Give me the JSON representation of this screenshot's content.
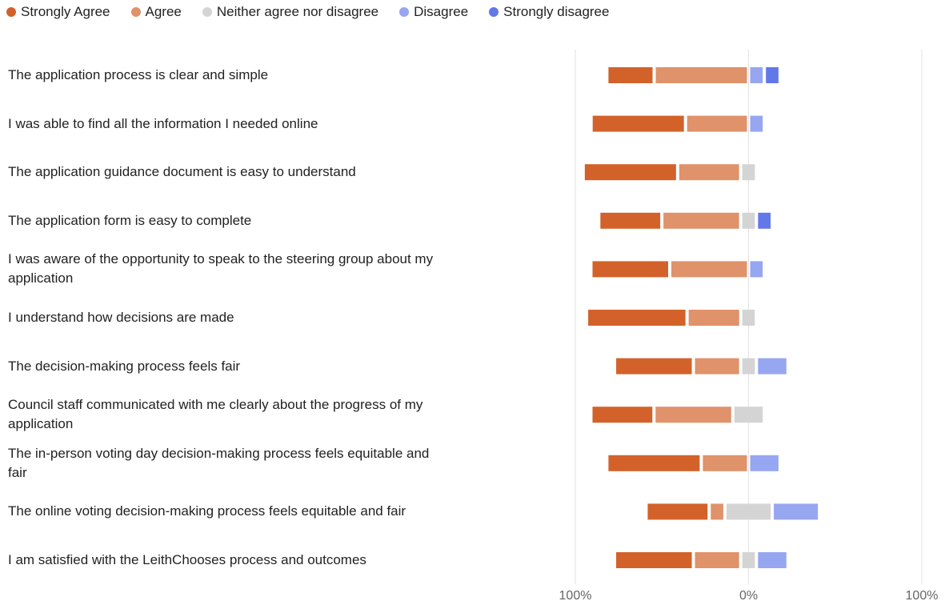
{
  "chart_data": {
    "type": "diverging_bar",
    "categories": [
      "The application process is clear and simple",
      "I was able to find all the information I needed online",
      "The application guidance document is easy to understand",
      "The application form is easy to complete",
      "I was aware of the opportunity to speak to the steering group about my application",
      "I understand how decisions are made",
      "The decision-making process feels fair",
      "Council staff communicated with me clearly about the progress of my application",
      "The in-person voting day decision-making process feels equitable and fair",
      "The online voting decision-making process feels equitable and fair",
      "I am satisfied with the LeithChooses process and outcomes"
    ],
    "series": [
      {
        "name": "Strongly Agree",
        "color": "#d2622a",
        "values": [
          27.3,
          54.5,
          54.5,
          36.4,
          45.5,
          58,
          45.5,
          36.4,
          54.5,
          36.4,
          45.5
        ]
      },
      {
        "name": "Agree",
        "color": "#e0926a",
        "values": [
          54.5,
          36.4,
          36.4,
          45.5,
          45.5,
          31,
          27.3,
          45.5,
          27.3,
          9.1,
          27.3
        ]
      },
      {
        "name": "Neither agree nor disagree",
        "color": "#d4d4d4",
        "values": [
          0,
          0,
          9.1,
          9.1,
          0,
          9,
          9.1,
          18.2,
          0,
          27.3,
          9.1
        ]
      },
      {
        "name": "Disagree",
        "color": "#97a6f0",
        "values": [
          9.1,
          9.1,
          0,
          0,
          9.1,
          0,
          18.2,
          0,
          18.2,
          27.3,
          18.2
        ]
      },
      {
        "name": "Strongly disagree",
        "color": "#6378e8",
        "values": [
          9.1,
          0,
          0,
          9.1,
          0,
          0,
          0,
          0,
          0,
          0,
          0
        ]
      }
    ],
    "xlim": [
      -100,
      100
    ],
    "xticks": [
      {
        "value": -100,
        "label": "100%"
      },
      {
        "value": 0,
        "label": "0%"
      },
      {
        "value": 100,
        "label": "100%"
      }
    ],
    "legend": "top"
  }
}
